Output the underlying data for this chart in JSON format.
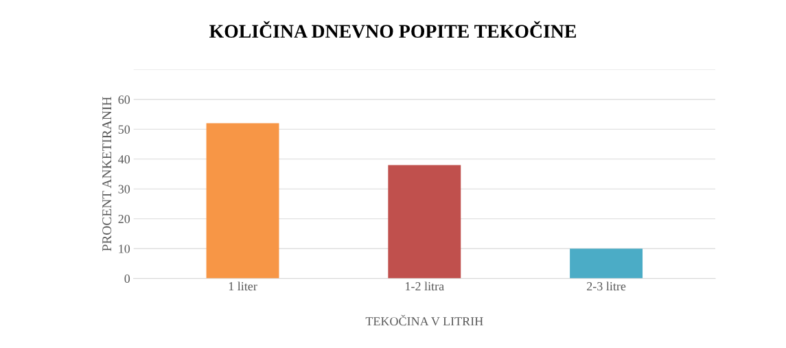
{
  "chart_data": {
    "type": "bar",
    "title": "KOLIČINA DNEVNO POPITE TEKOČINE",
    "xlabel": "TEKOČINA V LITRIH",
    "ylabel": "PROCENT ANKETIRANIH",
    "categories": [
      "1 liter",
      "1-2 litra",
      "2-3 litre"
    ],
    "values": [
      52,
      38,
      10
    ],
    "colors": [
      "#f79646",
      "#c0504d",
      "#4bacc6"
    ],
    "ylim": [
      0,
      70
    ],
    "yticks": [
      0,
      10,
      20,
      30,
      40,
      50,
      60,
      {
        "value": 70,
        "label": null
      }
    ],
    "grid": "y"
  }
}
